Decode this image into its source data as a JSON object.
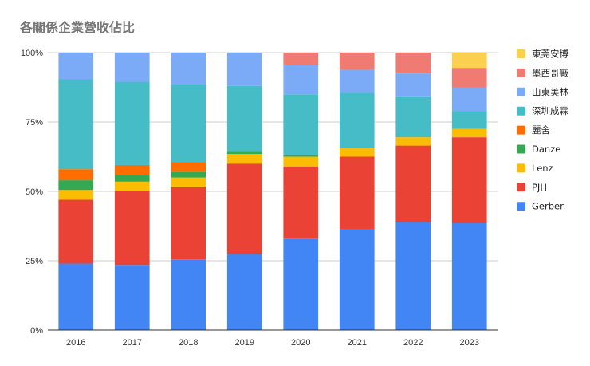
{
  "chart_data": {
    "type": "bar",
    "stacked": "percent",
    "title": "各關係企業營收佔比",
    "xlabel": "",
    "ylabel": "",
    "ylim": [
      0,
      100
    ],
    "yticks": [
      "0%",
      "25%",
      "50%",
      "75%",
      "100%"
    ],
    "grid": true,
    "legend_position": "right",
    "categories": [
      "2016",
      "2017",
      "2018",
      "2019",
      "2020",
      "2021",
      "2022",
      "2023"
    ],
    "series": [
      {
        "name": "Gerber",
        "color": "#4285f4",
        "values": [
          24,
          23.5,
          25.5,
          27.5,
          33,
          36.5,
          39,
          38.5
        ]
      },
      {
        "name": "PJH",
        "color": "#ea4335",
        "values": [
          23,
          26.5,
          26,
          32.5,
          26,
          26,
          27.5,
          31
        ]
      },
      {
        "name": "Lenz",
        "color": "#fbbc04",
        "values": [
          3.5,
          3.5,
          3.5,
          3.5,
          3.5,
          3,
          3,
          3
        ]
      },
      {
        "name": "Danze",
        "color": "#34a853",
        "values": [
          3.5,
          2.5,
          2,
          1,
          0.5,
          0,
          0,
          0
        ]
      },
      {
        "name": "麗舍",
        "color": "#ff6d01",
        "values": [
          4,
          3.5,
          3.5,
          0,
          0,
          0,
          0,
          0
        ]
      },
      {
        "name": "深圳成霖",
        "color": "#46bdc6",
        "values": [
          32.5,
          30,
          28,
          23.5,
          22,
          20,
          14.5,
          6.5
        ]
      },
      {
        "name": "山東美林",
        "color": "#7baaf7",
        "values": [
          9.5,
          10.5,
          11.5,
          12,
          10.5,
          8.5,
          8.5,
          8.5
        ]
      },
      {
        "name": "墨西哥廠",
        "color": "#f07b72",
        "values": [
          0,
          0,
          0,
          0,
          4.5,
          6,
          7.5,
          7
        ]
      },
      {
        "name": "東莞安博",
        "color": "#fcd04f",
        "values": [
          0,
          0,
          0,
          0,
          0,
          0,
          0,
          5.5
        ]
      }
    ]
  }
}
